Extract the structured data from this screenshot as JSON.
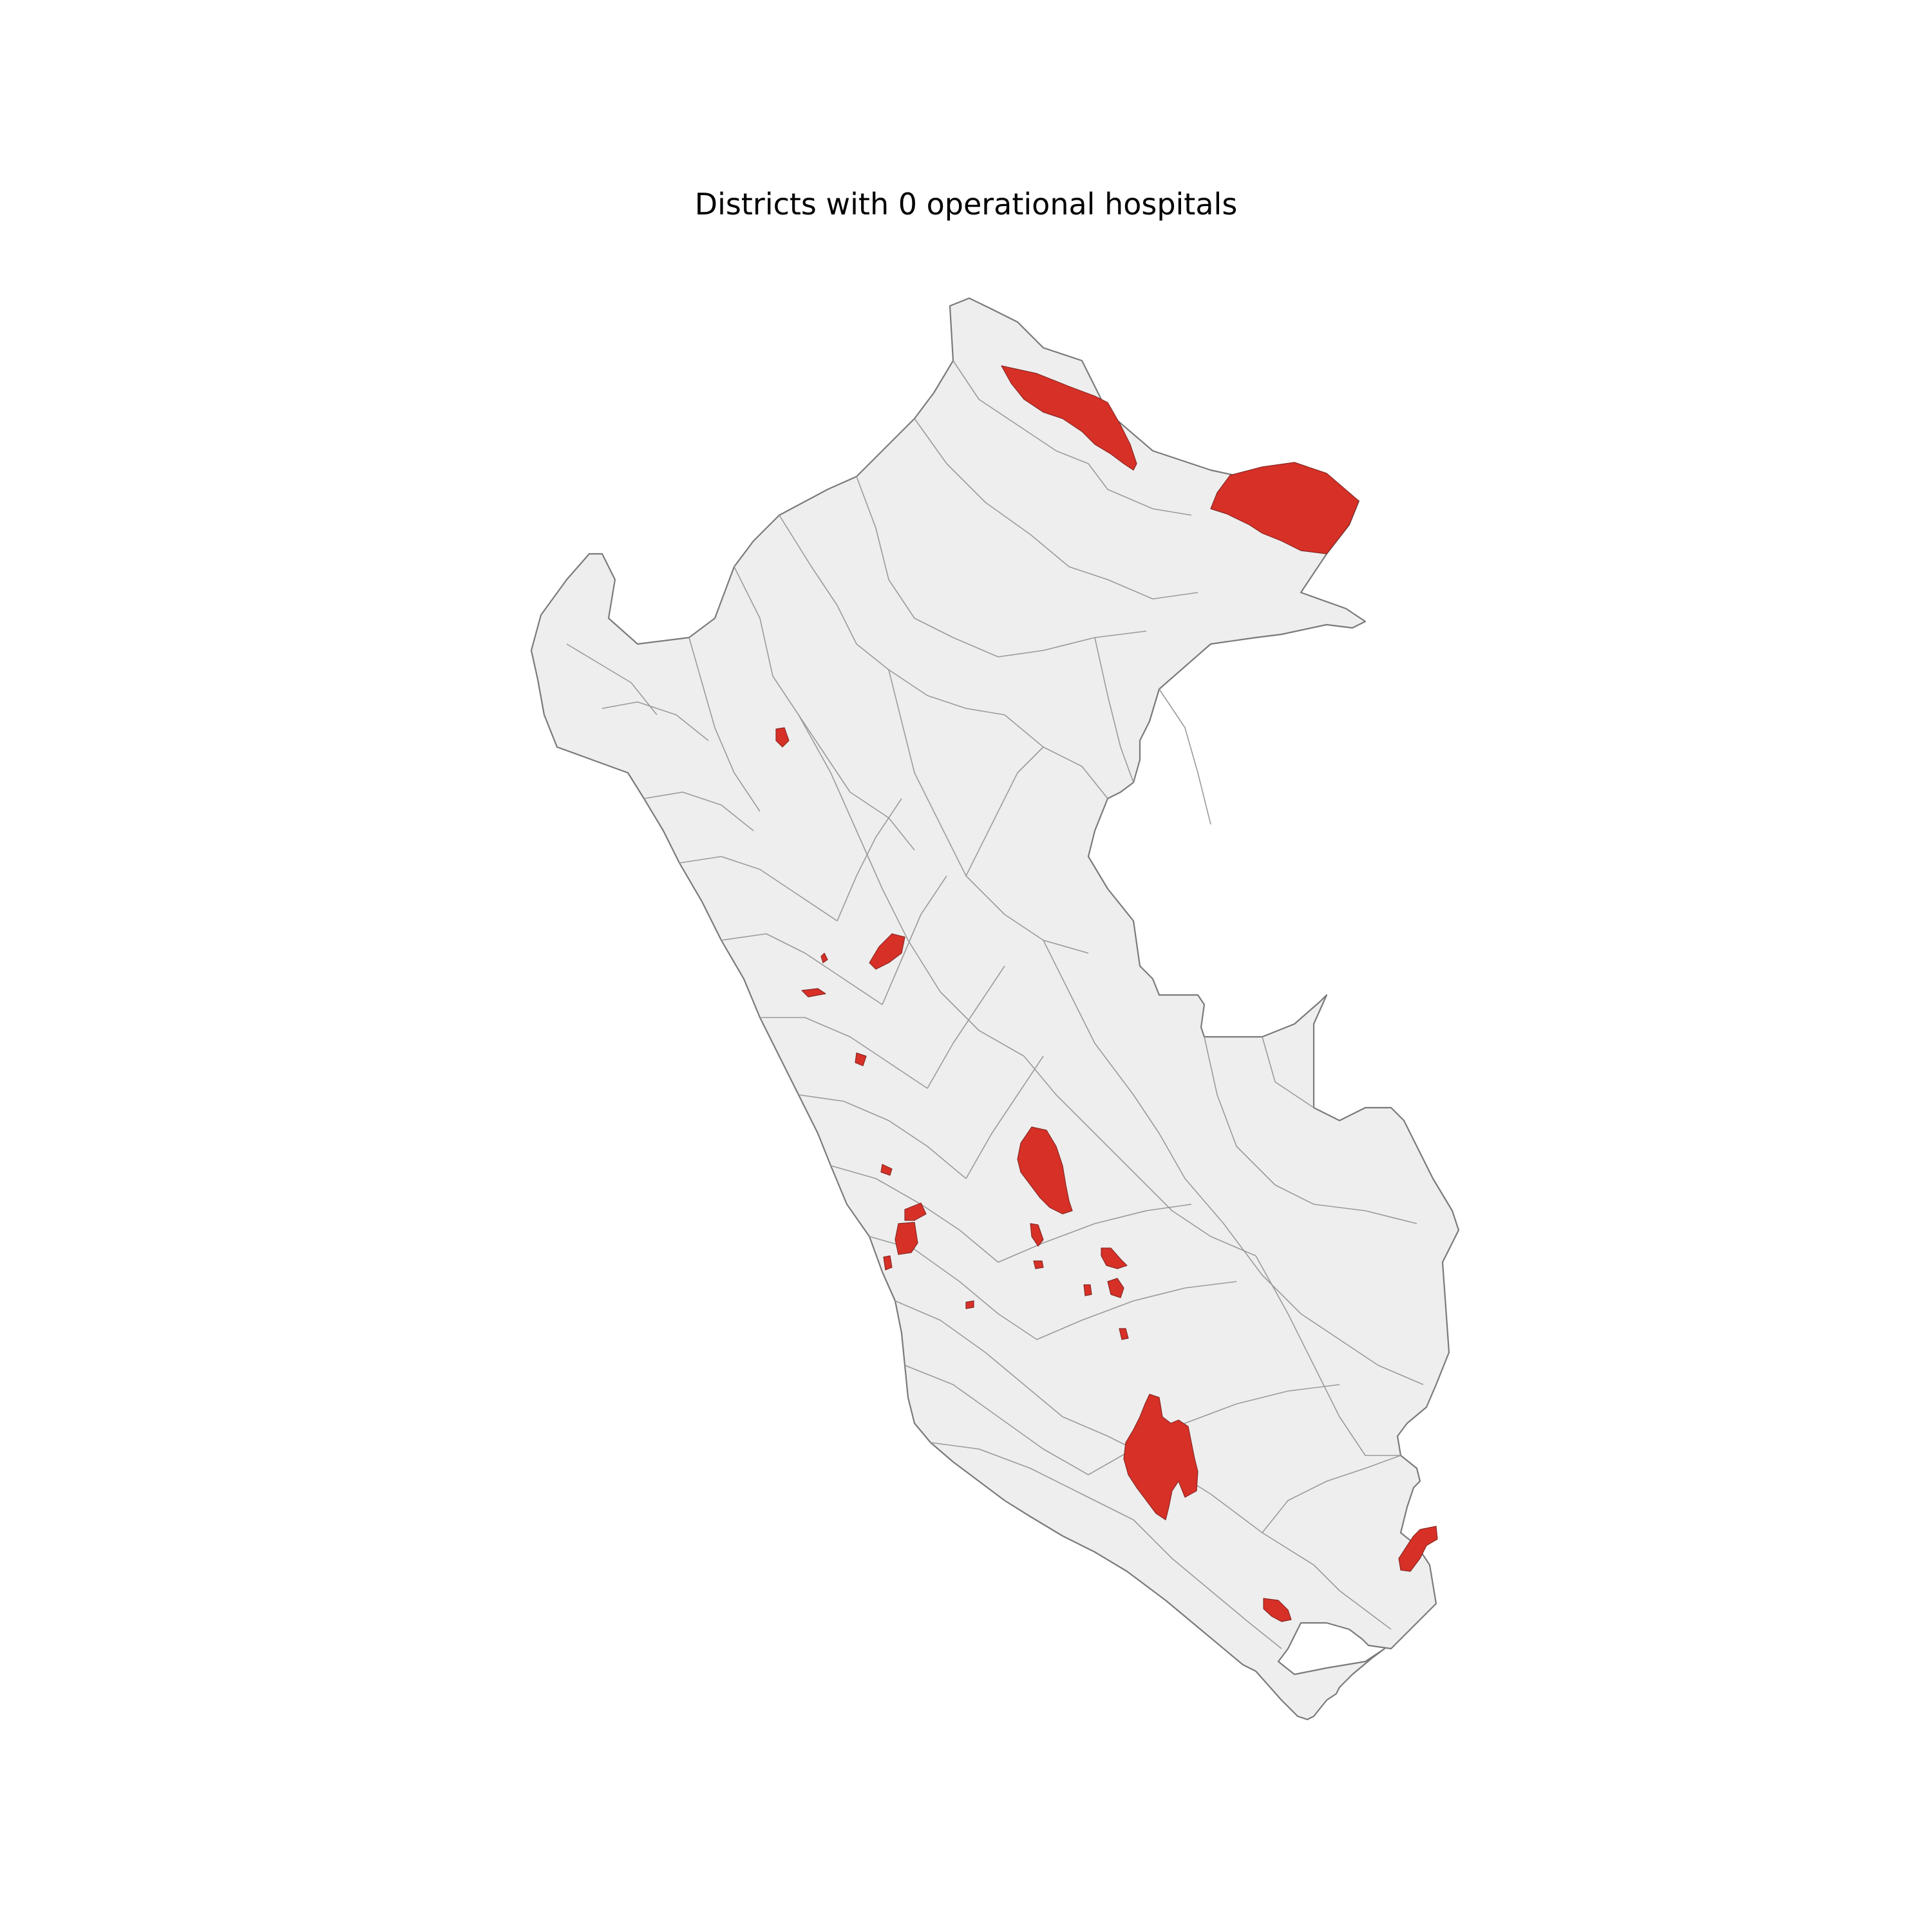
{
  "map": {
    "title": "Districts with 0 operational hospitals",
    "colors": {
      "background": "#ffffff",
      "land": "#eeeeee",
      "district_border": "#9a9a9a",
      "highlight": "#d73027"
    },
    "highlight_category": "0 operational hospitals",
    "region": "Peru"
  }
}
